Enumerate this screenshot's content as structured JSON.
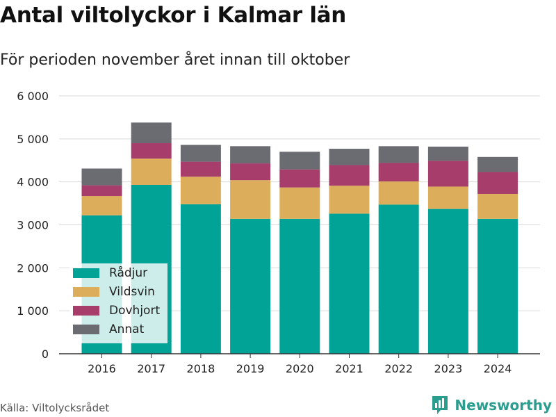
{
  "title": "Antal viltolyckor i Kalmar län",
  "subtitle": "För perioden november året innan till oktober",
  "source": "Källa: Viltolycksrådet",
  "brand": {
    "name": "Newsworthy",
    "icon": "newsworthy-logo-icon",
    "color": "#2a9d8f"
  },
  "chart_data": {
    "type": "bar",
    "stacked": true,
    "categories": [
      "2016",
      "2017",
      "2018",
      "2019",
      "2020",
      "2021",
      "2022",
      "2023",
      "2024"
    ],
    "series": [
      {
        "name": "Rådjur",
        "color": "#00a396",
        "values": [
          3220,
          3930,
          3480,
          3140,
          3140,
          3260,
          3470,
          3370,
          3140
        ]
      },
      {
        "name": "Vildsvin",
        "color": "#dcae5c",
        "values": [
          450,
          610,
          640,
          900,
          730,
          650,
          540,
          520,
          580
        ]
      },
      {
        "name": "Dovhjort",
        "color": "#a63d6a",
        "values": [
          250,
          360,
          350,
          390,
          420,
          480,
          430,
          600,
          510
        ]
      },
      {
        "name": "Annat",
        "color": "#6b6b72",
        "values": [
          390,
          480,
          390,
          400,
          410,
          380,
          390,
          330,
          350
        ]
      }
    ],
    "yticks": [
      "0",
      "1 000",
      "2 000",
      "3 000",
      "4 000",
      "5 000",
      "6 000"
    ],
    "ylim": [
      0,
      6000
    ],
    "grid": true,
    "legend_position": "bottom-left"
  }
}
